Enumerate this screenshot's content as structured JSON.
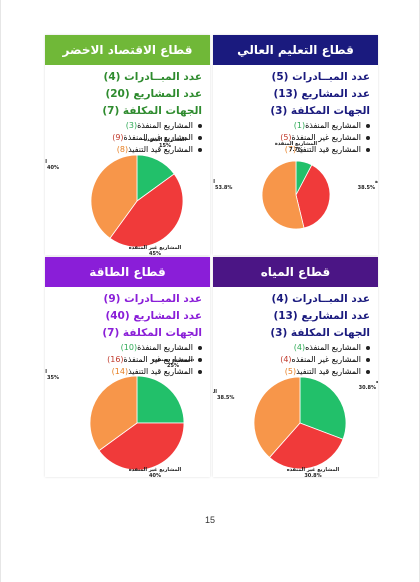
{
  "page_number": "15",
  "panels": [
    {
      "id": "higher-education",
      "title": "قطاع التعليم العالي",
      "header_color": "#1a1a7e",
      "stat_color": "#1a1a7e",
      "stats": [
        {
          "label": "عدد المبــادرات",
          "value": "(5)"
        },
        {
          "label": "عدد المشاريع",
          "value": "(13)"
        },
        {
          "label": "الجهات المكلفة",
          "value": "(3)"
        }
      ],
      "bullets": [
        {
          "label": "المشاريع المنفذة",
          "value": "(1)",
          "value_color": "#2eaa55"
        },
        {
          "label": "المشاريع غير المنفذة",
          "value": "(5)",
          "value_color": "#c0392b"
        },
        {
          "label": "المشاريع قيد التنفيذ",
          "value": "(7)",
          "value_color": "#e67e22"
        }
      ],
      "chart_data": {
        "type": "pie",
        "slices": [
          {
            "label": "المشاريع المنفذة",
            "value": 7.7,
            "percent_label": "7.7%",
            "color": "#22c06a"
          },
          {
            "label": "مشاريع غير المنفذة",
            "value": 38.5,
            "percent_label": "38.5%",
            "color": "#f03a3a"
          },
          {
            "label": "المشاريع قيد التنفيذ",
            "value": 53.8,
            "percent_label": "53.8%",
            "color": "#f7964a"
          }
        ]
      }
    },
    {
      "id": "green-economy",
      "title": "قطاع الاقتصاد الاخضر",
      "header_color": "#70b838",
      "stat_color": "#2e8b2e",
      "stats": [
        {
          "label": "عدد المبــادرات",
          "value": "(4)"
        },
        {
          "label": "عدد المشاريع",
          "value": "(20)"
        },
        {
          "label": "الجهات المكلفة",
          "value": "(7)"
        }
      ],
      "bullets": [
        {
          "label": "المشاريع المنفذة",
          "value": "(3)",
          "value_color": "#2eaa55"
        },
        {
          "label": "المشاريع غير المنفذة",
          "value": "(9)",
          "value_color": "#c0392b"
        },
        {
          "label": "المشاريع قيد التنفيذ",
          "value": "(8)",
          "value_color": "#e67e22"
        }
      ],
      "chart_data": {
        "type": "pie",
        "slices": [
          {
            "label": "المشاريع المنفذة",
            "value": 15,
            "percent_label": "15%",
            "color": "#22c06a"
          },
          {
            "label": "المشاريع غير المنفذة",
            "value": 45,
            "percent_label": "45%",
            "color": "#f03a3a"
          },
          {
            "label": "المشاريع قيد التنفيذ",
            "value": 40,
            "percent_label": "40%",
            "color": "#f7964a"
          }
        ]
      }
    },
    {
      "id": "water",
      "title": "قطاع المياه",
      "header_color": "#4b1585",
      "stat_color": "#1a1a7e",
      "stats": [
        {
          "label": "عدد المبــادرات",
          "value": "(4)"
        },
        {
          "label": "عدد المشاريع",
          "value": "(13)"
        },
        {
          "label": "الجهات المكلفة",
          "value": "(3)"
        }
      ],
      "bullets": [
        {
          "label": "المشاريع المنفذه",
          "value": "(4)",
          "value_color": "#2eaa55"
        },
        {
          "label": "المشاريع غير المنفذه",
          "value": "(4)",
          "value_color": "#c0392b"
        },
        {
          "label": "المشاريع قيد التنفيذ",
          "value": "(5)",
          "value_color": "#e67e22"
        }
      ],
      "chart_data": {
        "type": "pie",
        "slices": [
          {
            "label": "المشاريع المنفذه",
            "value": 30.8,
            "percent_label": "30.8%",
            "color": "#22c06a"
          },
          {
            "label": "المشاريع غير المنفذه",
            "value": 30.8,
            "percent_label": "30.8%",
            "color": "#f03a3a"
          },
          {
            "label": "المشاريع قيد التنفيذ",
            "value": 38.5,
            "percent_label": "38.5%",
            "color": "#f7964a"
          }
        ]
      }
    },
    {
      "id": "energy",
      "title": "قطاع الطاقة",
      "header_color": "#8a1ed8",
      "stat_color": "#8a1ed8",
      "stats": [
        {
          "label": "عدد المبــادرات",
          "value": "(9)"
        },
        {
          "label": "عدد المشاريع",
          "value": "(40)"
        },
        {
          "label": "الجهات المكلفة",
          "value": "(7)"
        }
      ],
      "bullets": [
        {
          "label": "المشاريع المنفذة",
          "value": "(10)",
          "value_color": "#2eaa55"
        },
        {
          "label": "المشاريع غير المنفذة",
          "value": "(16)",
          "value_color": "#c0392b"
        },
        {
          "label": "المشاريع قيد التنفيذ",
          "value": "(14)",
          "value_color": "#e67e22"
        }
      ],
      "chart_data": {
        "type": "pie",
        "slices": [
          {
            "label": "المشاريع المنفذة",
            "value": 25,
            "percent_label": "25%",
            "color": "#22c06a"
          },
          {
            "label": "المشاريع غير المنفذة",
            "value": 40,
            "percent_label": "40%",
            "color": "#f03a3a"
          },
          {
            "label": "المشاريع قيد التنفيذ",
            "value": 35,
            "percent_label": "35%",
            "color": "#f7964a"
          }
        ]
      }
    }
  ]
}
